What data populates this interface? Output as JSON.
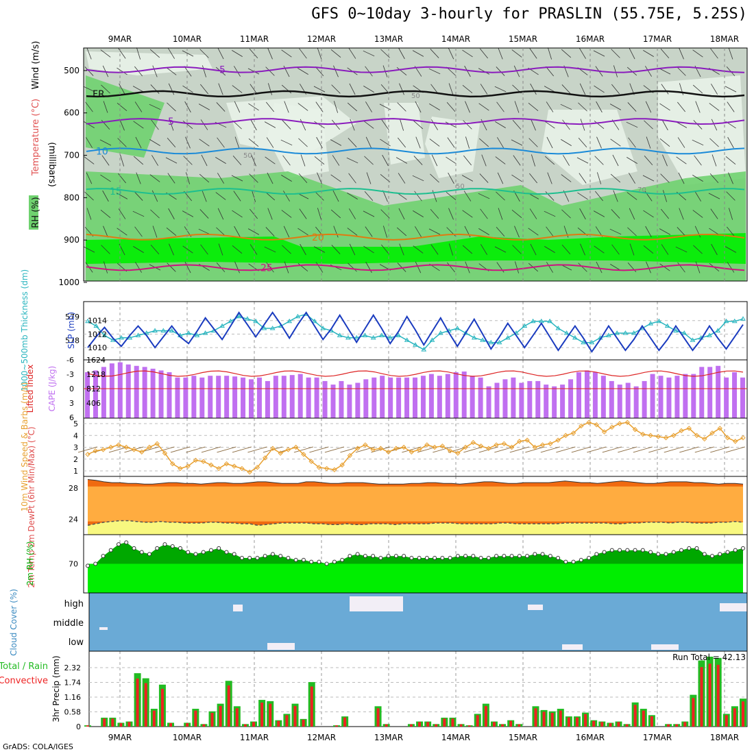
{
  "title": "GFS 0~10day 3-hourly for PRASLIN (55.75E, 5.25S)",
  "footer": "GrADS: COLA/IGES",
  "colors": {
    "rh_light": "#e8f2e8",
    "rh_mid": "#c8d4c8",
    "rh_dark": "#b4c2b4",
    "rh_green": "#6fd26f",
    "rh_bright": "#00ee00",
    "purple": "#8a1bbd",
    "cyan": "#1a8ad8",
    "teal": "#1cbf8f",
    "orange": "#e07a10",
    "magenta": "#cc1480",
    "slp": "#1a3bbf",
    "thick": "#29b5bf",
    "cape": "#c070f0",
    "li": "#dd2222",
    "wind": "#e8a030",
    "temp": "#f06a10",
    "dew": "#ffac40",
    "base": "#f8f880",
    "rh2m_dark": "#00a800",
    "rh2m": "#00ee00",
    "cloud": "#6aaad6",
    "precip_total": "#22bb22",
    "precip_conv": "#ee2222"
  },
  "dates": [
    "9MAR",
    "10MAR",
    "11MAR",
    "12MAR",
    "13MAR",
    "14MAR",
    "15MAR",
    "16MAR",
    "17MAR",
    "18MAR"
  ],
  "chart_data": [
    {
      "type": "contour",
      "panel": "upper_air",
      "ylabel": "(millibars)",
      "labels": [
        "Wind (m/s)",
        "Temperature (°C)",
        "RH (%)"
      ],
      "yticks": [
        500,
        600,
        700,
        800,
        900,
        1000
      ],
      "ylim": [
        1000,
        450
      ],
      "isotherms": [
        {
          "value": "-5",
          "pressure_mb": 498
        },
        {
          "value": "FR",
          "pressure_mb": 555
        },
        {
          "value": "5",
          "pressure_mb": 620
        },
        {
          "value": "10",
          "pressure_mb": 690
        },
        {
          "value": "15",
          "pressure_mb": 785
        },
        {
          "value": "20",
          "pressure_mb": 893
        },
        {
          "value": "25",
          "pressure_mb": 965
        }
      ],
      "rh_labels": [
        "50",
        "50",
        "50",
        "70"
      ]
    },
    {
      "type": "line",
      "panel": "slp_thickness",
      "ylabel_left": "1000~500mb Thickness (dm)",
      "ylabel_right": "SLP (mb)",
      "yticks_left": [
        "579",
        "578"
      ],
      "yticks_right": [
        "1014",
        "1012",
        "1010"
      ],
      "slp_mb": [
        1010.0,
        1011.6,
        1013.0,
        1011.4,
        1010.2,
        1011.8,
        1013.2,
        1011.8,
        1010.0,
        1011.6,
        1013.2,
        1011.6,
        1010.6,
        1012.4,
        1014.4,
        1012.8,
        1011.2,
        1013.2,
        1015.2,
        1013.4,
        1011.6,
        1013.4,
        1015.2,
        1013.4,
        1011.4,
        1013.4,
        1015.2,
        1013.2,
        1011.2,
        1012.8,
        1014.8,
        1012.8,
        1010.8,
        1012.8,
        1014.8,
        1012.8,
        1010.6,
        1012.4,
        1014.6,
        1012.6,
        1010.4,
        1012.4,
        1014.4,
        1012.2,
        1010.2,
        1012.2,
        1014.2,
        1012.0,
        1009.8,
        1011.6,
        1013.6,
        1011.8,
        1010.0,
        1011.8,
        1013.6,
        1011.6,
        1009.6,
        1011.4,
        1013.2,
        1011.4,
        1009.4,
        1011.2,
        1013.2,
        1011.4,
        1009.6,
        1011.2,
        1013.2,
        1011.4,
        1009.6,
        1011.2,
        1013.2,
        1011.4,
        1009.6,
        1011.2,
        1013.2,
        1011.4,
        1009.8,
        1011.6,
        1013.4
      ],
      "thickness_dm": [
        578.8,
        578.6,
        578.2,
        578.0,
        578.1,
        578.1,
        578.2,
        578.3,
        578.4,
        578.4,
        578.4,
        578.2,
        578.3,
        578.2,
        578.3,
        578.4,
        578.6,
        578.8,
        579.0,
        578.9,
        578.8,
        578.5,
        578.5,
        578.6,
        578.8,
        579.0,
        579.1,
        578.8,
        578.5,
        578.4,
        578.2,
        578.1,
        578.1,
        578.2,
        578.1,
        578.2,
        578.1,
        578.2,
        578.0,
        577.8,
        577.6,
        578.0,
        578.3,
        578.4,
        578.5,
        578.3,
        578.1,
        578.0,
        577.9,
        577.9,
        578.1,
        578.3,
        578.6,
        578.8,
        578.8,
        578.8,
        578.5,
        578.3,
        578.1,
        577.9,
        577.9,
        578.1,
        578.2,
        578.3,
        578.3,
        578.3,
        578.5,
        578.7,
        578.8,
        578.6,
        578.4,
        578.3,
        578.0,
        578.1,
        578.2,
        578.4,
        578.8,
        578.8,
        578.9
      ]
    },
    {
      "type": "bar",
      "panel": "cape_li",
      "ylabel_left": "Lifted Index",
      "ylabel_right": "CAPE (J/kg)",
      "yticks_left": [
        "-6",
        "-3",
        "0",
        "3",
        "6"
      ],
      "yticks_right": [
        "1624",
        "1218",
        "812",
        "406"
      ],
      "cape_jkg": [
        1300,
        1350,
        1450,
        1550,
        1580,
        1520,
        1480,
        1450,
        1400,
        1350,
        1300,
        1150,
        1150,
        1200,
        1150,
        1200,
        1200,
        1200,
        1180,
        1150,
        1100,
        1150,
        1050,
        1200,
        1200,
        1220,
        1250,
        1150,
        1150,
        1050,
        950,
        1050,
        950,
        1000,
        1100,
        1150,
        1200,
        1150,
        1150,
        1150,
        1150,
        1200,
        1250,
        1200,
        1250,
        1300,
        1320,
        1200,
        1150,
        900,
        1000,
        1100,
        1150,
        1000,
        1050,
        1050,
        950,
        900,
        950,
        1100,
        1300,
        1350,
        1300,
        1200,
        1050,
        950,
        1000,
        900,
        1050,
        1250,
        1200,
        1150,
        1200,
        1250,
        1250,
        1450,
        1450,
        1480,
        1150,
        1300,
        1150
      ]
    },
    {
      "type": "line",
      "panel": "wind10m",
      "ylabel": "10m Wind Speed & Barbs (m/s)",
      "yticks": [
        "5",
        "4",
        "3",
        "2",
        "1"
      ],
      "speed_ms": [
        2.4,
        2.7,
        2.8,
        3.0,
        3.2,
        3.0,
        2.8,
        2.6,
        3.0,
        3.3,
        2.5,
        1.6,
        1.2,
        1.4,
        1.9,
        1.8,
        1.5,
        1.2,
        1.6,
        1.4,
        1.2,
        0.9,
        1.3,
        2.1,
        2.9,
        2.5,
        2.8,
        3.0,
        2.4,
        1.8,
        1.3,
        1.2,
        1.1,
        1.5,
        2.3,
        2.9,
        3.2,
        2.8,
        2.9,
        2.6,
        2.9,
        3.0,
        2.6,
        2.8,
        3.2,
        3.0,
        3.1,
        2.7,
        2.5,
        3.0,
        3.4,
        3.1,
        2.9,
        3.2,
        3.3,
        3.0,
        3.5,
        3.6,
        3.0,
        3.2,
        3.3,
        3.6,
        4.0,
        4.2,
        4.8,
        5.1,
        4.9,
        4.3,
        4.7,
        5.0,
        5.1,
        4.5,
        4.1,
        4.0,
        3.9,
        3.8,
        4.0,
        4.4,
        4.6,
        4.0,
        3.7,
        4.2,
        4.6,
        3.8,
        3.5,
        3.8
      ]
    },
    {
      "type": "area",
      "panel": "temp2m",
      "ylabel": "2m Temp 2m DewPt (6hr Min/Max) (°C)",
      "yticks": [
        "28",
        "24"
      ],
      "temp_c": [
        29.1,
        29.0,
        28.8,
        28.7,
        28.7,
        28.6,
        28.6,
        28.5,
        28.5,
        28.6,
        28.7,
        28.7,
        28.6,
        28.6,
        28.5,
        28.6,
        28.7,
        28.7,
        28.6,
        28.6,
        28.7,
        28.8,
        28.8,
        28.7,
        28.6,
        28.6,
        28.6,
        28.8,
        28.8,
        28.7,
        28.6,
        28.6,
        28.7,
        28.7,
        28.7,
        28.6,
        28.5,
        28.5,
        28.5,
        28.5,
        28.6,
        28.6,
        28.7,
        28.7,
        28.6,
        28.6,
        28.5,
        28.6,
        28.7,
        28.8,
        28.8,
        28.7,
        28.6,
        28.6,
        28.7,
        28.7,
        28.7,
        28.7,
        28.8,
        28.9,
        28.8,
        28.7,
        28.7,
        28.6,
        28.7,
        28.8,
        28.9,
        28.8,
        28.7,
        28.6,
        28.6,
        28.7,
        28.8,
        28.8,
        28.8,
        28.7,
        28.7,
        28.6,
        28.5,
        28.6,
        28.6,
        28.5
      ],
      "dewpt_c": [
        23.2,
        23.4,
        23.6,
        23.7,
        23.8,
        23.8,
        23.7,
        23.6,
        23.6,
        23.7,
        23.6,
        23.6,
        23.5,
        23.5,
        23.5,
        23.6,
        23.6,
        23.5,
        23.5,
        23.4,
        23.4,
        23.2,
        23.3,
        23.4,
        23.5,
        23.5,
        23.5,
        23.5,
        23.4,
        23.4,
        23.3,
        23.3,
        23.4,
        23.3,
        23.3,
        23.4,
        23.4,
        23.4,
        23.3,
        23.4,
        23.4,
        23.4,
        23.4,
        23.5,
        23.5,
        23.5,
        23.4,
        23.4,
        23.4,
        23.4,
        23.4,
        23.5,
        23.5,
        23.4,
        23.4,
        23.4,
        23.4,
        23.4,
        23.4,
        23.5,
        23.5,
        23.5,
        23.5,
        23.5,
        23.5,
        23.4,
        23.4,
        23.5,
        23.5,
        23.6,
        23.6,
        23.6,
        23.5,
        23.6,
        23.6,
        23.5,
        23.5,
        23.5,
        23.6,
        23.6,
        23.7,
        23.6
      ]
    },
    {
      "type": "area",
      "panel": "rh2m",
      "ylabel": "2m RH (%)",
      "yticks": [
        "70"
      ],
      "rh_pct": [
        69,
        70,
        74,
        77,
        80,
        81,
        78,
        76,
        75,
        78,
        80,
        79,
        78,
        76,
        75,
        76,
        77,
        78,
        76,
        75,
        73,
        73,
        73,
        74,
        75,
        74,
        73,
        72,
        72,
        71,
        71,
        70,
        71,
        72,
        74,
        75,
        74,
        74,
        73,
        74,
        74,
        74,
        73,
        73,
        73,
        73,
        73,
        73,
        74,
        74,
        74,
        73,
        73,
        74,
        74,
        74,
        74,
        74,
        75,
        75,
        74,
        73,
        71,
        71,
        72,
        73,
        75,
        76,
        77,
        77,
        77,
        77,
        77,
        76,
        75,
        75,
        76,
        77,
        78,
        78,
        75,
        74,
        75,
        76,
        77,
        78
      ]
    },
    {
      "type": "heatmap",
      "panel": "cloud",
      "ylabel": "Cloud Cover (%)",
      "levels": [
        "high",
        "middle",
        "low"
      ]
    },
    {
      "type": "bar",
      "panel": "precip",
      "ylabel": "3hr Precip (mm)",
      "legend": [
        "Total / Rain",
        "Convective"
      ],
      "run_total_label": "Run Total = 42.13",
      "yticks": [
        "2.32",
        "1.74",
        "1.16",
        "0.58",
        "0"
      ],
      "precip_mm": [
        0.05,
        0,
        0.35,
        0.35,
        0.15,
        0.2,
        2.1,
        1.9,
        0.7,
        1.65,
        0.15,
        0,
        0.15,
        0.7,
        0.1,
        0.6,
        0.9,
        1.8,
        0.8,
        0.1,
        0.2,
        1.05,
        1.0,
        0.25,
        0.5,
        0.9,
        0.3,
        1.75,
        0,
        0,
        0.05,
        0.4,
        0,
        0,
        0,
        0.8,
        0.1,
        0,
        0,
        0.1,
        0.2,
        0.2,
        0.1,
        0.35,
        0.35,
        0.1,
        0.05,
        0.5,
        0.9,
        0.2,
        0.1,
        0.25,
        0.1,
        0,
        0.8,
        0.65,
        0.6,
        0.7,
        0.4,
        0.4,
        0.55,
        0.25,
        0.2,
        0.15,
        0.2,
        0.1,
        0.95,
        0.7,
        0.45,
        0,
        0.1,
        0.1,
        0.2,
        1.25,
        2.6,
        2.75,
        2.7,
        0.5,
        0.8,
        1.1
      ]
    }
  ]
}
